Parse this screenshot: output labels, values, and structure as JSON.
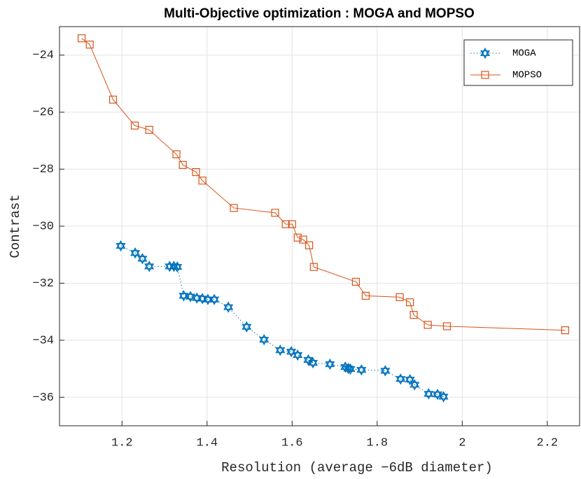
{
  "chart_data": {
    "type": "line",
    "title": "Multi-Objective optimization : MOGA and MOPSO",
    "x_label": "Resolution (average −6dB diameter)",
    "y_label": "Contrast",
    "xlim": [
      1.053,
      2.276
    ],
    "ylim": [
      -37,
      -23
    ],
    "xticks": [
      1.2,
      1.4,
      1.6,
      1.8,
      2,
      2.2
    ],
    "yticks": [
      {
        "value": -36,
        "label": "−36"
      },
      {
        "value": -34,
        "label": "−34"
      },
      {
        "value": -32,
        "label": "−32"
      },
      {
        "value": -30,
        "label": "−30"
      },
      {
        "value": -28,
        "label": "−28"
      },
      {
        "value": -26,
        "label": "−26"
      },
      {
        "value": -24,
        "label": "−24"
      }
    ],
    "grid": true,
    "legend": "upper right",
    "series": [
      {
        "name": "MOGA",
        "color": "#0072BD",
        "marker": "hexagram",
        "linestyle": "dotted",
        "x": [
          1.197,
          1.231,
          1.248,
          1.264,
          1.312,
          1.322,
          1.33,
          1.345,
          1.361,
          1.376,
          1.389,
          1.402,
          1.417,
          1.45,
          1.493,
          1.534,
          1.572,
          1.598,
          1.613,
          1.638,
          1.649,
          1.689,
          1.725,
          1.732,
          1.737,
          1.763,
          1.819,
          1.855,
          1.877,
          1.888,
          1.921,
          1.942,
          1.956
        ],
        "values": [
          -30.69,
          -30.94,
          -31.14,
          -31.41,
          -31.41,
          -31.41,
          -31.43,
          -32.44,
          -32.47,
          -32.52,
          -32.54,
          -32.57,
          -32.57,
          -32.84,
          -33.53,
          -33.98,
          -34.35,
          -34.4,
          -34.52,
          -34.69,
          -34.79,
          -34.84,
          -34.94,
          -34.99,
          -35.01,
          -35.04,
          -35.07,
          -35.36,
          -35.38,
          -35.56,
          -35.88,
          -35.9,
          -35.98
        ]
      },
      {
        "name": "MOPSO",
        "color": "#D95319",
        "marker": "square",
        "linestyle": "solid",
        "x": [
          1.105,
          1.124,
          1.179,
          1.23,
          1.264,
          1.328,
          1.343,
          1.374,
          1.389,
          1.463,
          1.56,
          1.585,
          1.6,
          1.613,
          1.626,
          1.64,
          1.651,
          1.75,
          1.773,
          1.853,
          1.877,
          1.886,
          1.919,
          1.964,
          2.242
        ],
        "values": [
          -23.41,
          -23.63,
          -25.56,
          -26.47,
          -26.62,
          -27.48,
          -27.85,
          -28.1,
          -28.4,
          -29.36,
          -29.53,
          -29.93,
          -29.93,
          -30.4,
          -30.47,
          -30.67,
          -31.43,
          -31.95,
          -32.44,
          -32.49,
          -32.67,
          -33.11,
          -33.46,
          -33.51,
          -33.65
        ]
      }
    ]
  }
}
